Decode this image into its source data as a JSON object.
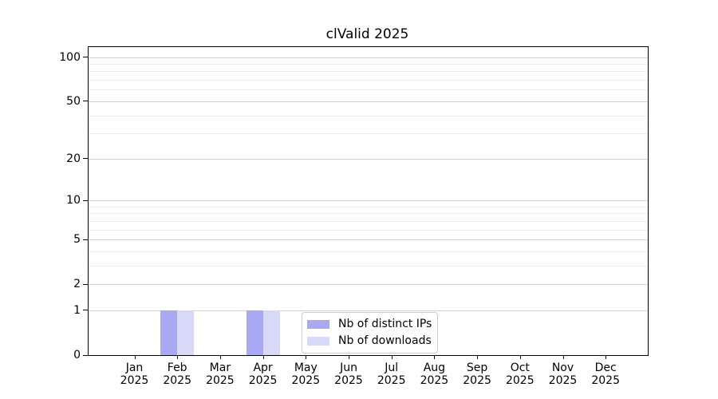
{
  "chart_data": {
    "type": "bar",
    "title": "clValid 2025",
    "year": "2025",
    "categories": [
      "Jan",
      "Feb",
      "Mar",
      "Apr",
      "May",
      "Jun",
      "Jul",
      "Aug",
      "Sep",
      "Oct",
      "Nov",
      "Dec"
    ],
    "series": [
      {
        "name": "Nb of distinct IPs",
        "color": "#a9a9f3",
        "values": [
          0,
          1,
          0,
          1,
          0,
          0,
          0,
          0,
          0,
          0,
          0,
          0
        ]
      },
      {
        "name": "Nb of downloads",
        "color": "#d8d8f8",
        "values": [
          0,
          1,
          0,
          1,
          0,
          0,
          0,
          0,
          0,
          0,
          0,
          0
        ]
      }
    ],
    "xlabel": "",
    "ylabel": "",
    "yscale": "log1p",
    "ylim": [
      0,
      117
    ],
    "y_major_ticks": [
      0,
      1,
      2,
      5,
      10,
      20,
      50,
      100
    ],
    "y_minor_ticks": [
      3,
      4,
      6,
      7,
      8,
      9,
      30,
      40,
      60,
      70,
      80,
      90
    ],
    "grid": "both",
    "legend_position": "bottom-center",
    "colors": {
      "grid_major": "#d2d2d2",
      "grid_minor": "#ececec",
      "axis": "#000000",
      "text": "#000000",
      "legend_border": "#cccccc",
      "background": "#ffffff"
    }
  }
}
